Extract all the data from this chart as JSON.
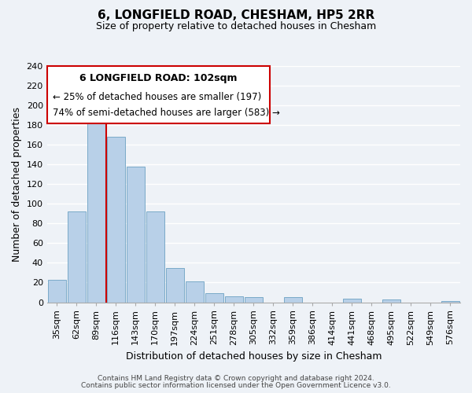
{
  "title": "6, LONGFIELD ROAD, CHESHAM, HP5 2RR",
  "subtitle": "Size of property relative to detached houses in Chesham",
  "xlabel": "Distribution of detached houses by size in Chesham",
  "ylabel": "Number of detached properties",
  "bar_labels": [
    "35sqm",
    "62sqm",
    "89sqm",
    "116sqm",
    "143sqm",
    "170sqm",
    "197sqm",
    "224sqm",
    "251sqm",
    "278sqm",
    "305sqm",
    "332sqm",
    "359sqm",
    "386sqm",
    "414sqm",
    "441sqm",
    "468sqm",
    "495sqm",
    "522sqm",
    "549sqm",
    "576sqm"
  ],
  "bar_values": [
    23,
    92,
    190,
    168,
    138,
    92,
    35,
    21,
    9,
    6,
    5,
    0,
    5,
    0,
    0,
    4,
    0,
    3,
    0,
    0,
    1
  ],
  "bar_color": "#b8d0e8",
  "bar_edge_color": "#7aaac8",
  "ylim": [
    0,
    240
  ],
  "yticks": [
    0,
    20,
    40,
    60,
    80,
    100,
    120,
    140,
    160,
    180,
    200,
    220,
    240
  ],
  "property_line_color": "#cc0000",
  "annotation_title": "6 LONGFIELD ROAD: 102sqm",
  "annotation_line1": "← 25% of detached houses are smaller (197)",
  "annotation_line2": "74% of semi-detached houses are larger (583) →",
  "annotation_box_color": "#ffffff",
  "annotation_box_edge": "#cc0000",
  "footer1": "Contains HM Land Registry data © Crown copyright and database right 2024.",
  "footer2": "Contains public sector information licensed under the Open Government Licence v3.0.",
  "background_color": "#eef2f7",
  "plot_background": "#eef2f7",
  "grid_color": "#ffffff",
  "title_fontsize": 11,
  "subtitle_fontsize": 9,
  "axis_label_fontsize": 9,
  "tick_fontsize": 8,
  "annotation_title_fontsize": 9,
  "annotation_text_fontsize": 8.5,
  "footer_fontsize": 6.5
}
